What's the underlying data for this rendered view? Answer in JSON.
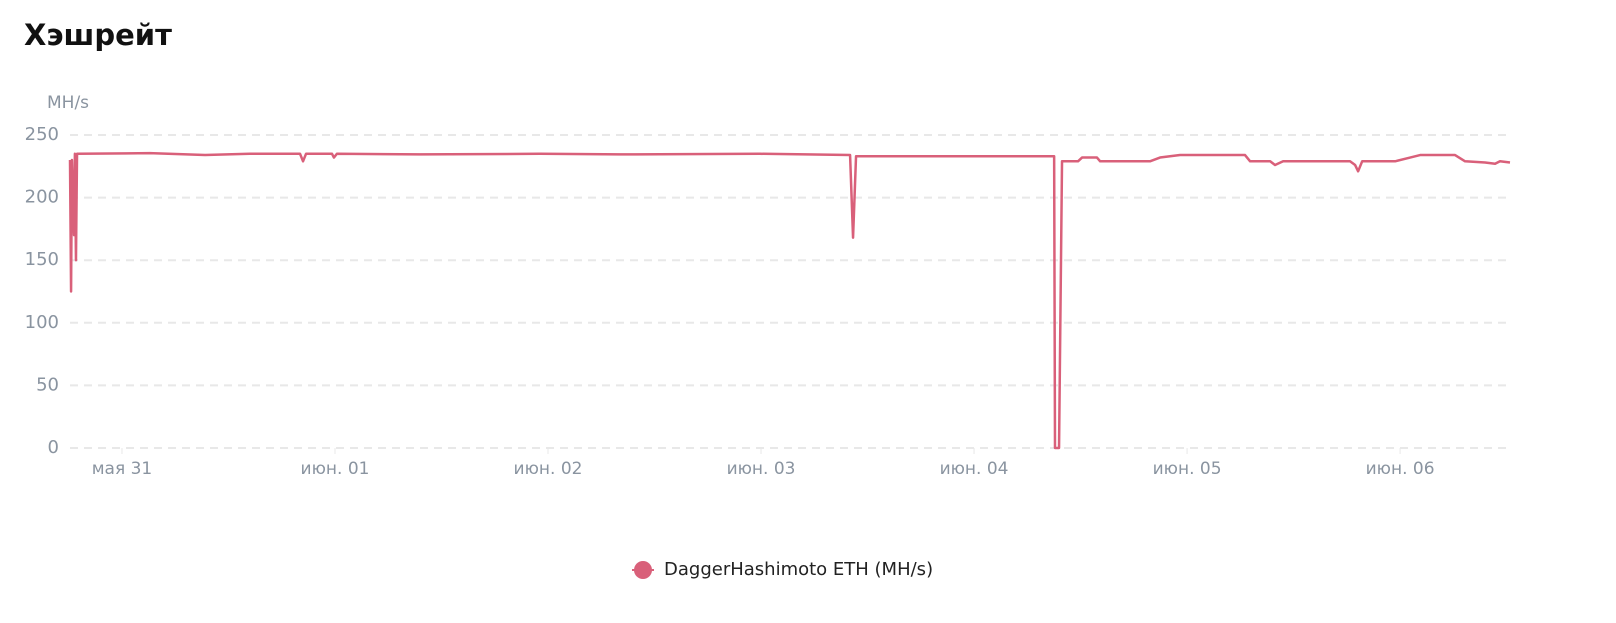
{
  "chart_data": {
    "type": "line",
    "title": "Хэшрейт",
    "y_label": "MH/s",
    "x": [
      -0.244,
      -0.239,
      -0.235,
      -0.225,
      -0.221,
      -0.216,
      -0.211,
      0.131,
      0.39,
      0.6,
      0.836,
      0.85,
      0.864,
      0.986,
      0.995,
      1.009,
      1.399,
      1.962,
      2.338,
      2.995,
      3.418,
      3.432,
      3.446,
      3.887,
      4.376,
      4.38,
      4.399,
      4.413,
      4.488,
      4.507,
      4.577,
      4.592,
      4.826,
      4.873,
      4.967,
      5.272,
      5.296,
      5.39,
      5.413,
      5.451,
      5.765,
      5.789,
      5.803,
      5.822,
      5.977,
      6.047,
      6.094,
      6.258,
      6.305,
      6.399,
      6.446,
      6.469,
      6.516
    ],
    "series": [
      {
        "name": "DaggerHashimoto ETH (MH/s)",
        "color": "#d9607a",
        "values": [
          230,
          125,
          230,
          170,
          235,
          150,
          235,
          235.5,
          234,
          235,
          235,
          229,
          235,
          235,
          232,
          235,
          234.5,
          235,
          234.5,
          235,
          234,
          168,
          233,
          233,
          233,
          0,
          0,
          229,
          229,
          232,
          232,
          229,
          229,
          232,
          234,
          234,
          229,
          229,
          226,
          229,
          229,
          226,
          221,
          229,
          229,
          232,
          234,
          234,
          229,
          228,
          227,
          229,
          228
        ]
      }
    ],
    "xlim": [
      -0.244,
      6.516
    ],
    "xticks": [
      {
        "value": 0,
        "label": "мая 31"
      },
      {
        "value": 1,
        "label": "июн. 01"
      },
      {
        "value": 2,
        "label": "июн. 02"
      },
      {
        "value": 3,
        "label": "июн. 03"
      },
      {
        "value": 4,
        "label": "июн. 04"
      },
      {
        "value": 5,
        "label": "июн. 05"
      },
      {
        "value": 6,
        "label": "июн. 06"
      }
    ],
    "ylim": [
      0,
      250
    ],
    "yticks": [
      0,
      50,
      100,
      150,
      200,
      250
    ],
    "grid": true,
    "legend": "bottom"
  }
}
